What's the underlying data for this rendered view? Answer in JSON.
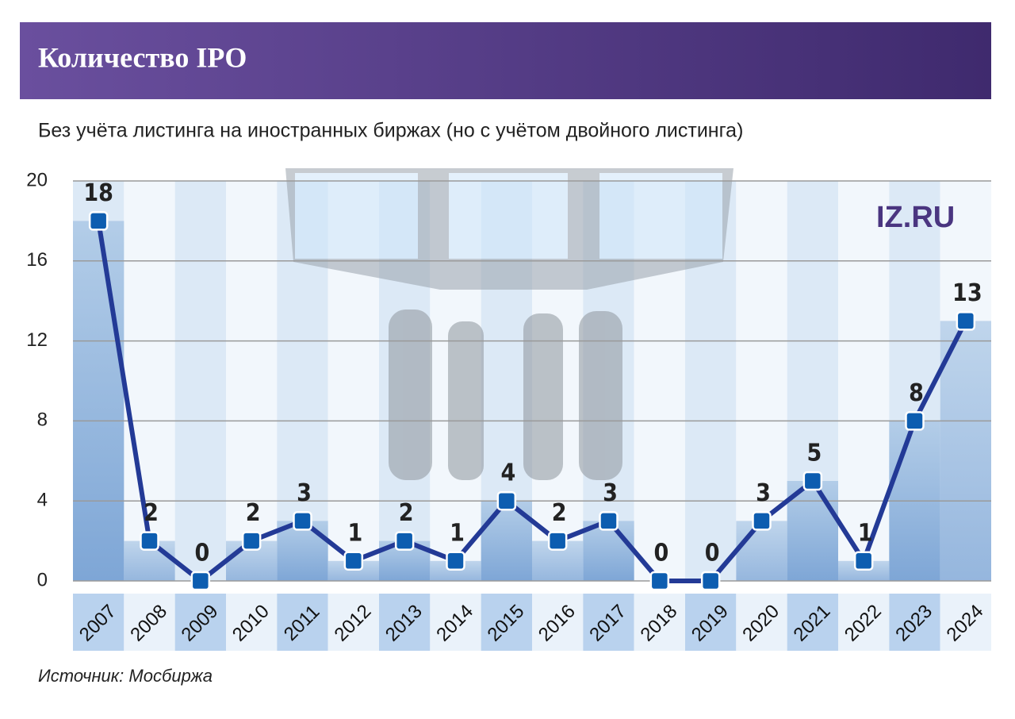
{
  "chart_data": {
    "type": "line",
    "title": "Количество IPO",
    "subtitle": "Без учёта листинга на иностранных биржах (но с учётом двойного листинга)",
    "source": "Источник: Мосбиржа",
    "logo": "IZ.RU",
    "categories": [
      "2007",
      "2008",
      "2009",
      "2010",
      "2011",
      "2012",
      "2013",
      "2014",
      "2015",
      "2016",
      "2017",
      "2018",
      "2019",
      "2020",
      "2021",
      "2022",
      "2023",
      "2024"
    ],
    "values": [
      18,
      2,
      0,
      2,
      3,
      1,
      2,
      1,
      4,
      2,
      3,
      0,
      0,
      3,
      5,
      1,
      8,
      13
    ],
    "color": "#233a96",
    "ylim": [
      0,
      20
    ],
    "yticks": [
      0,
      4,
      8,
      12,
      16,
      20
    ],
    "grid": true
  }
}
